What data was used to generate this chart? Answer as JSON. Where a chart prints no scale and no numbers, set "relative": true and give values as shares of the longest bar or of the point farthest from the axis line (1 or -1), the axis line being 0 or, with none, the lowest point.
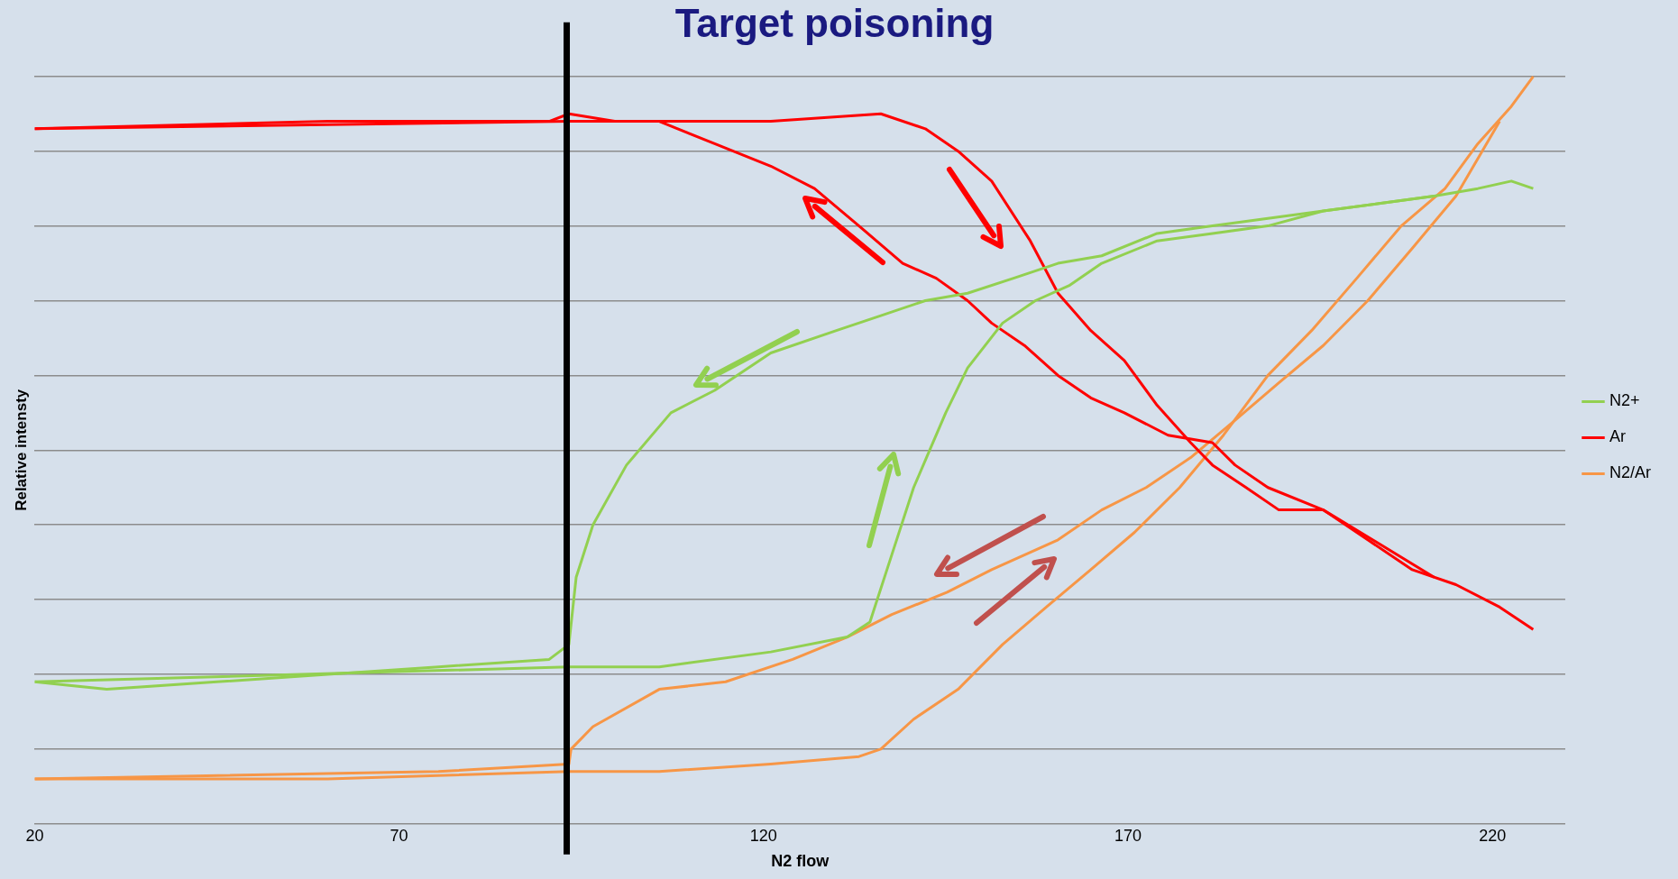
{
  "chart_data": {
    "type": "line",
    "title": "Target poisoning",
    "xlabel": "N2 flow",
    "ylabel": "Relative intensty",
    "relative": true,
    "xlim": [
      20,
      230
    ],
    "xticks": [
      20,
      70,
      120,
      170,
      220
    ],
    "grid": "y",
    "legend": "right",
    "marker": "none",
    "line_style": "solid",
    "ref_lines": [
      {
        "axis": "x",
        "value": 93,
        "color": "#000000"
      }
    ],
    "series": [
      {
        "name": "N2+",
        "color": "#92d050",
        "x": [
          20,
          93.3,
          105.7,
          121,
          131.5,
          134.6,
          137.6,
          140.6,
          145,
          148,
          152.8,
          157.3,
          161.9,
          166.4,
          174,
          181.6,
          189.2,
          196.8,
          204.4,
          212,
          218,
          222.6,
          225.6
        ],
        "values": [
          0.19,
          0.21,
          0.21,
          0.23,
          0.25,
          0.27,
          0.36,
          0.45,
          0.55,
          0.61,
          0.67,
          0.7,
          0.72,
          0.75,
          0.78,
          0.79,
          0.8,
          0.82,
          0.83,
          0.84,
          0.85,
          0.86,
          0.85
        ]
      },
      {
        "color": "#92d050",
        "x": [
          20,
          29.9,
          45,
          60.2,
          75.4,
          90.6,
          93.3,
          94.3,
          96.6,
          101.2,
          107.3,
          113.3,
          121,
          130,
          136.1,
          142.2,
          148,
          154.3,
          160.4,
          166.4,
          174,
          181.6,
          189.2,
          196.8,
          212
        ],
        "values": [
          0.19,
          0.18,
          0.19,
          0.2,
          0.21,
          0.22,
          0.24,
          0.33,
          0.4,
          0.48,
          0.55,
          0.58,
          0.63,
          0.66,
          0.68,
          0.7,
          0.71,
          0.73,
          0.75,
          0.76,
          0.79,
          0.8,
          0.81,
          0.82,
          0.84
        ]
      },
      {
        "name": "Ar",
        "color": "#ff0000",
        "x": [
          20,
          93.3,
          121,
          136.1,
          142.2,
          146.7,
          151.3,
          156.6,
          160.4,
          164.9,
          169.5,
          174,
          178.6,
          181.6,
          186.2,
          190.7,
          196.8,
          202.9,
          209,
          215,
          221,
          225.6
        ],
        "values": [
          0.93,
          0.94,
          0.94,
          0.95,
          0.93,
          0.9,
          0.86,
          0.78,
          0.71,
          0.66,
          0.62,
          0.56,
          0.51,
          0.48,
          0.45,
          0.42,
          0.42,
          0.38,
          0.34,
          0.32,
          0.29,
          0.26
        ]
      },
      {
        "color": "#ff0000",
        "x": [
          20,
          60.2,
          90.6,
          93.3,
          99.6,
          105.7,
          113.3,
          121,
          127,
          133.1,
          139.1,
          143.7,
          148,
          151.3,
          155.8,
          160.4,
          164.9,
          169.5,
          175.5,
          181.6,
          184.7,
          189.2,
          196.8,
          212
        ],
        "values": [
          0.93,
          0.94,
          0.94,
          0.95,
          0.94,
          0.94,
          0.91,
          0.88,
          0.85,
          0.8,
          0.75,
          0.73,
          0.7,
          0.67,
          0.64,
          0.6,
          0.57,
          0.55,
          0.52,
          0.51,
          0.48,
          0.45,
          0.42,
          0.33
        ]
      },
      {
        "name": "N2/Ar",
        "color": "#f79646",
        "x": [
          20,
          60.2,
          93.3,
          105.7,
          121,
          133.1,
          136.1,
          140.6,
          146.7,
          152.8,
          158.8,
          164.9,
          170.9,
          177.1,
          183.1,
          189.2,
          195.2,
          201.4,
          207.5,
          213.5,
          218,
          222.6,
          225.6
        ],
        "values": [
          0.06,
          0.06,
          0.07,
          0.07,
          0.08,
          0.09,
          0.1,
          0.14,
          0.18,
          0.24,
          0.29,
          0.34,
          0.39,
          0.45,
          0.52,
          0.6,
          0.66,
          0.73,
          0.8,
          0.85,
          0.91,
          0.96,
          1
        ]
      },
      {
        "color": "#f79646",
        "x": [
          20,
          75.4,
          93.3,
          93.6,
          96.6,
          105.7,
          114.8,
          124,
          131.5,
          137.6,
          145.2,
          151.3,
          160.4,
          166.4,
          172.5,
          178.6,
          184.7,
          190.7,
          196.8,
          202.9,
          209,
          215,
          221
        ],
        "values": [
          0.06,
          0.07,
          0.08,
          0.1,
          0.13,
          0.18,
          0.19,
          0.22,
          0.25,
          0.28,
          0.31,
          0.34,
          0.38,
          0.42,
          0.45,
          0.49,
          0.54,
          0.59,
          0.64,
          0.7,
          0.77,
          0.84,
          0.94
        ]
      }
    ]
  }
}
